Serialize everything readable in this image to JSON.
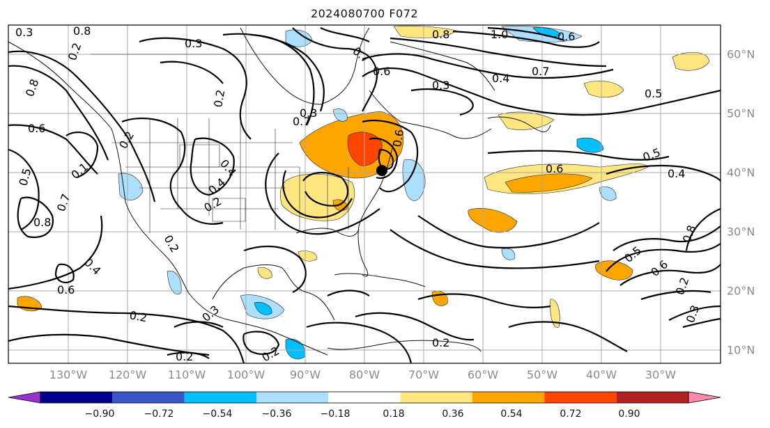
{
  "title": "2024080700 F072",
  "lon_labels": [
    "130°W",
    "120°W",
    "110°W",
    "100°W",
    "90°W",
    "80°W",
    "70°W",
    "60°W",
    "50°W",
    "40°W",
    "30°W"
  ],
  "lat_labels": [
    "60°N",
    "50°N",
    "40°N",
    "30°N",
    "20°N",
    "10°N"
  ],
  "colorbar": {
    "ticks": [
      "−0.90",
      "−0.72",
      "−0.54",
      "−0.36",
      "−0.18",
      "0.18",
      "0.36",
      "0.54",
      "0.72",
      "0.90"
    ],
    "colors": [
      "#9932CC",
      "#00008B",
      "#3A55C8",
      "#00BFFF",
      "#ADDFFF",
      "#FFFFFF",
      "#FFE680",
      "#FFA500",
      "#FF4500",
      "#B22222",
      "#FF88AA"
    ]
  },
  "contour_labels": [
    "0.3",
    "0.3",
    "0.2",
    "0.8",
    "0.6",
    "0.2",
    "0.6",
    "0.5",
    "0.1",
    "0.7",
    "0.8",
    "0.2",
    "0.4",
    "0.2",
    "0.3",
    "0.4",
    "0.2",
    "0.6",
    "0.8",
    "0.7",
    "0.7",
    "0.3",
    "0.4",
    "0.5",
    "0.6",
    "0.5",
    "0.4",
    "0.2",
    "0.5",
    "0.6",
    "0.8",
    "0.3",
    "0.3",
    "0.2",
    "0.2",
    "0.2",
    "1.0",
    "0.6",
    "0.8",
    "0.7",
    "0.6",
    "0.4",
    "0.2"
  ]
}
